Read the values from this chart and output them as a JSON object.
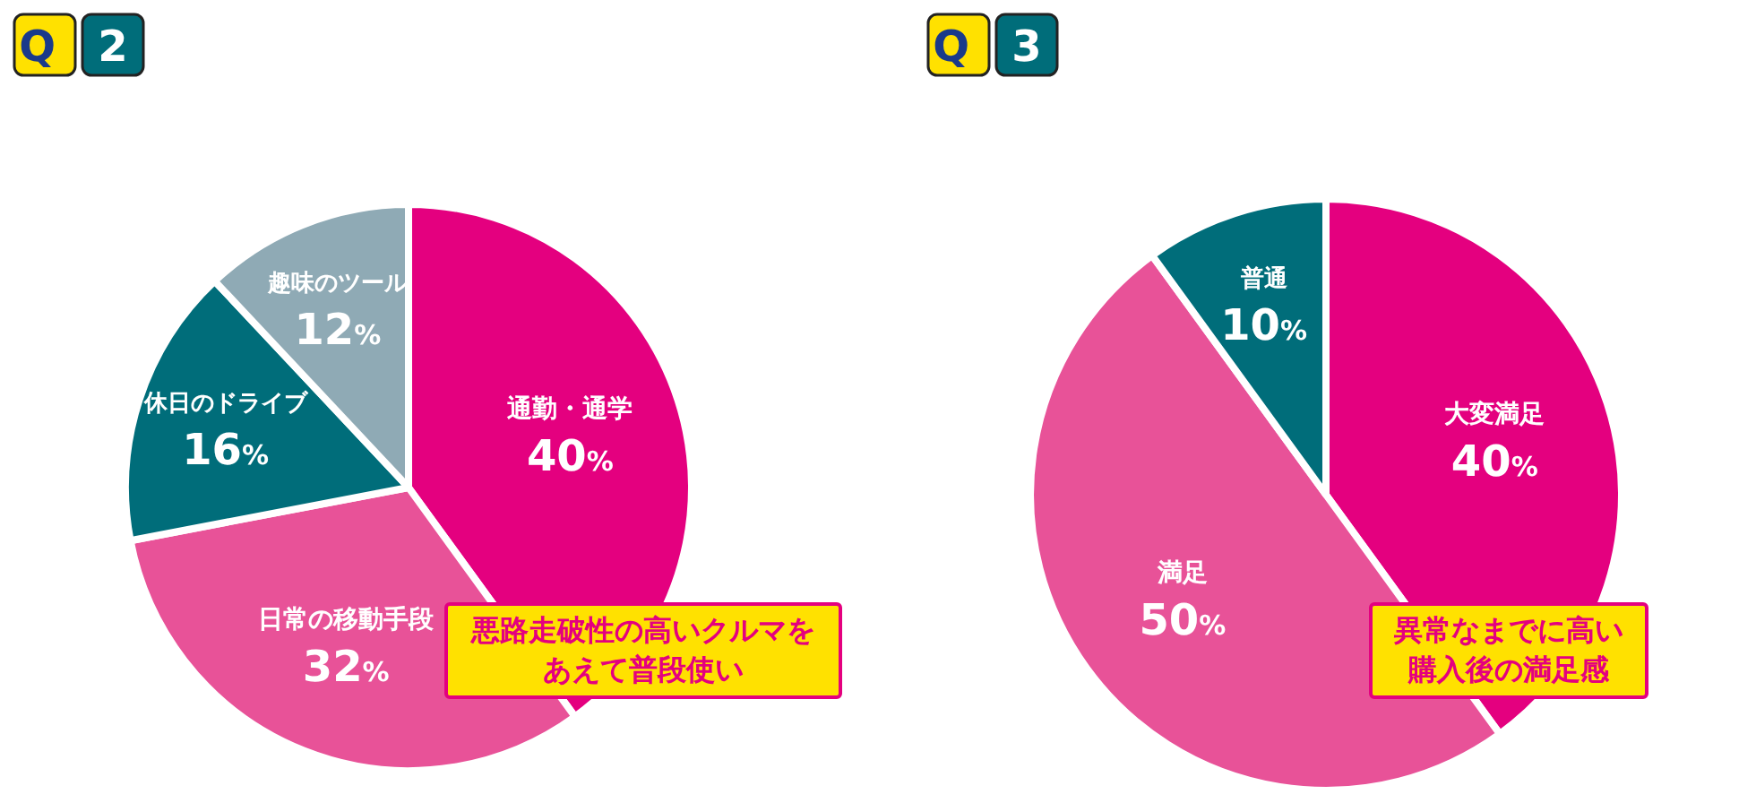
{
  "chart_data": [
    {
      "type": "pie",
      "title": "Q 2",
      "categories": [
        "通勤・通学",
        "日常の移動手段",
        "休日のドライブ",
        "趣味のツール"
      ],
      "values": [
        40,
        32,
        16,
        12
      ],
      "colors": [
        "#e4007f",
        "#e85298",
        "#006d7a",
        "#8faab5"
      ],
      "value_labels": [
        "40%",
        "32%",
        "16%",
        "12%"
      ],
      "annotations": [
        "悪路走破性の高いクルマをあえて普段使い"
      ]
    },
    {
      "type": "pie",
      "title": "Q 3",
      "categories": [
        "大変満足",
        "満足",
        "普通"
      ],
      "values": [
        40,
        50,
        10
      ],
      "colors": [
        "#e4007f",
        "#e85298",
        "#006d7a"
      ],
      "value_labels": [
        "40%",
        "50%",
        "10%"
      ],
      "annotations": [
        "異常なまでに高い購入後の満足感"
      ]
    }
  ]
}
